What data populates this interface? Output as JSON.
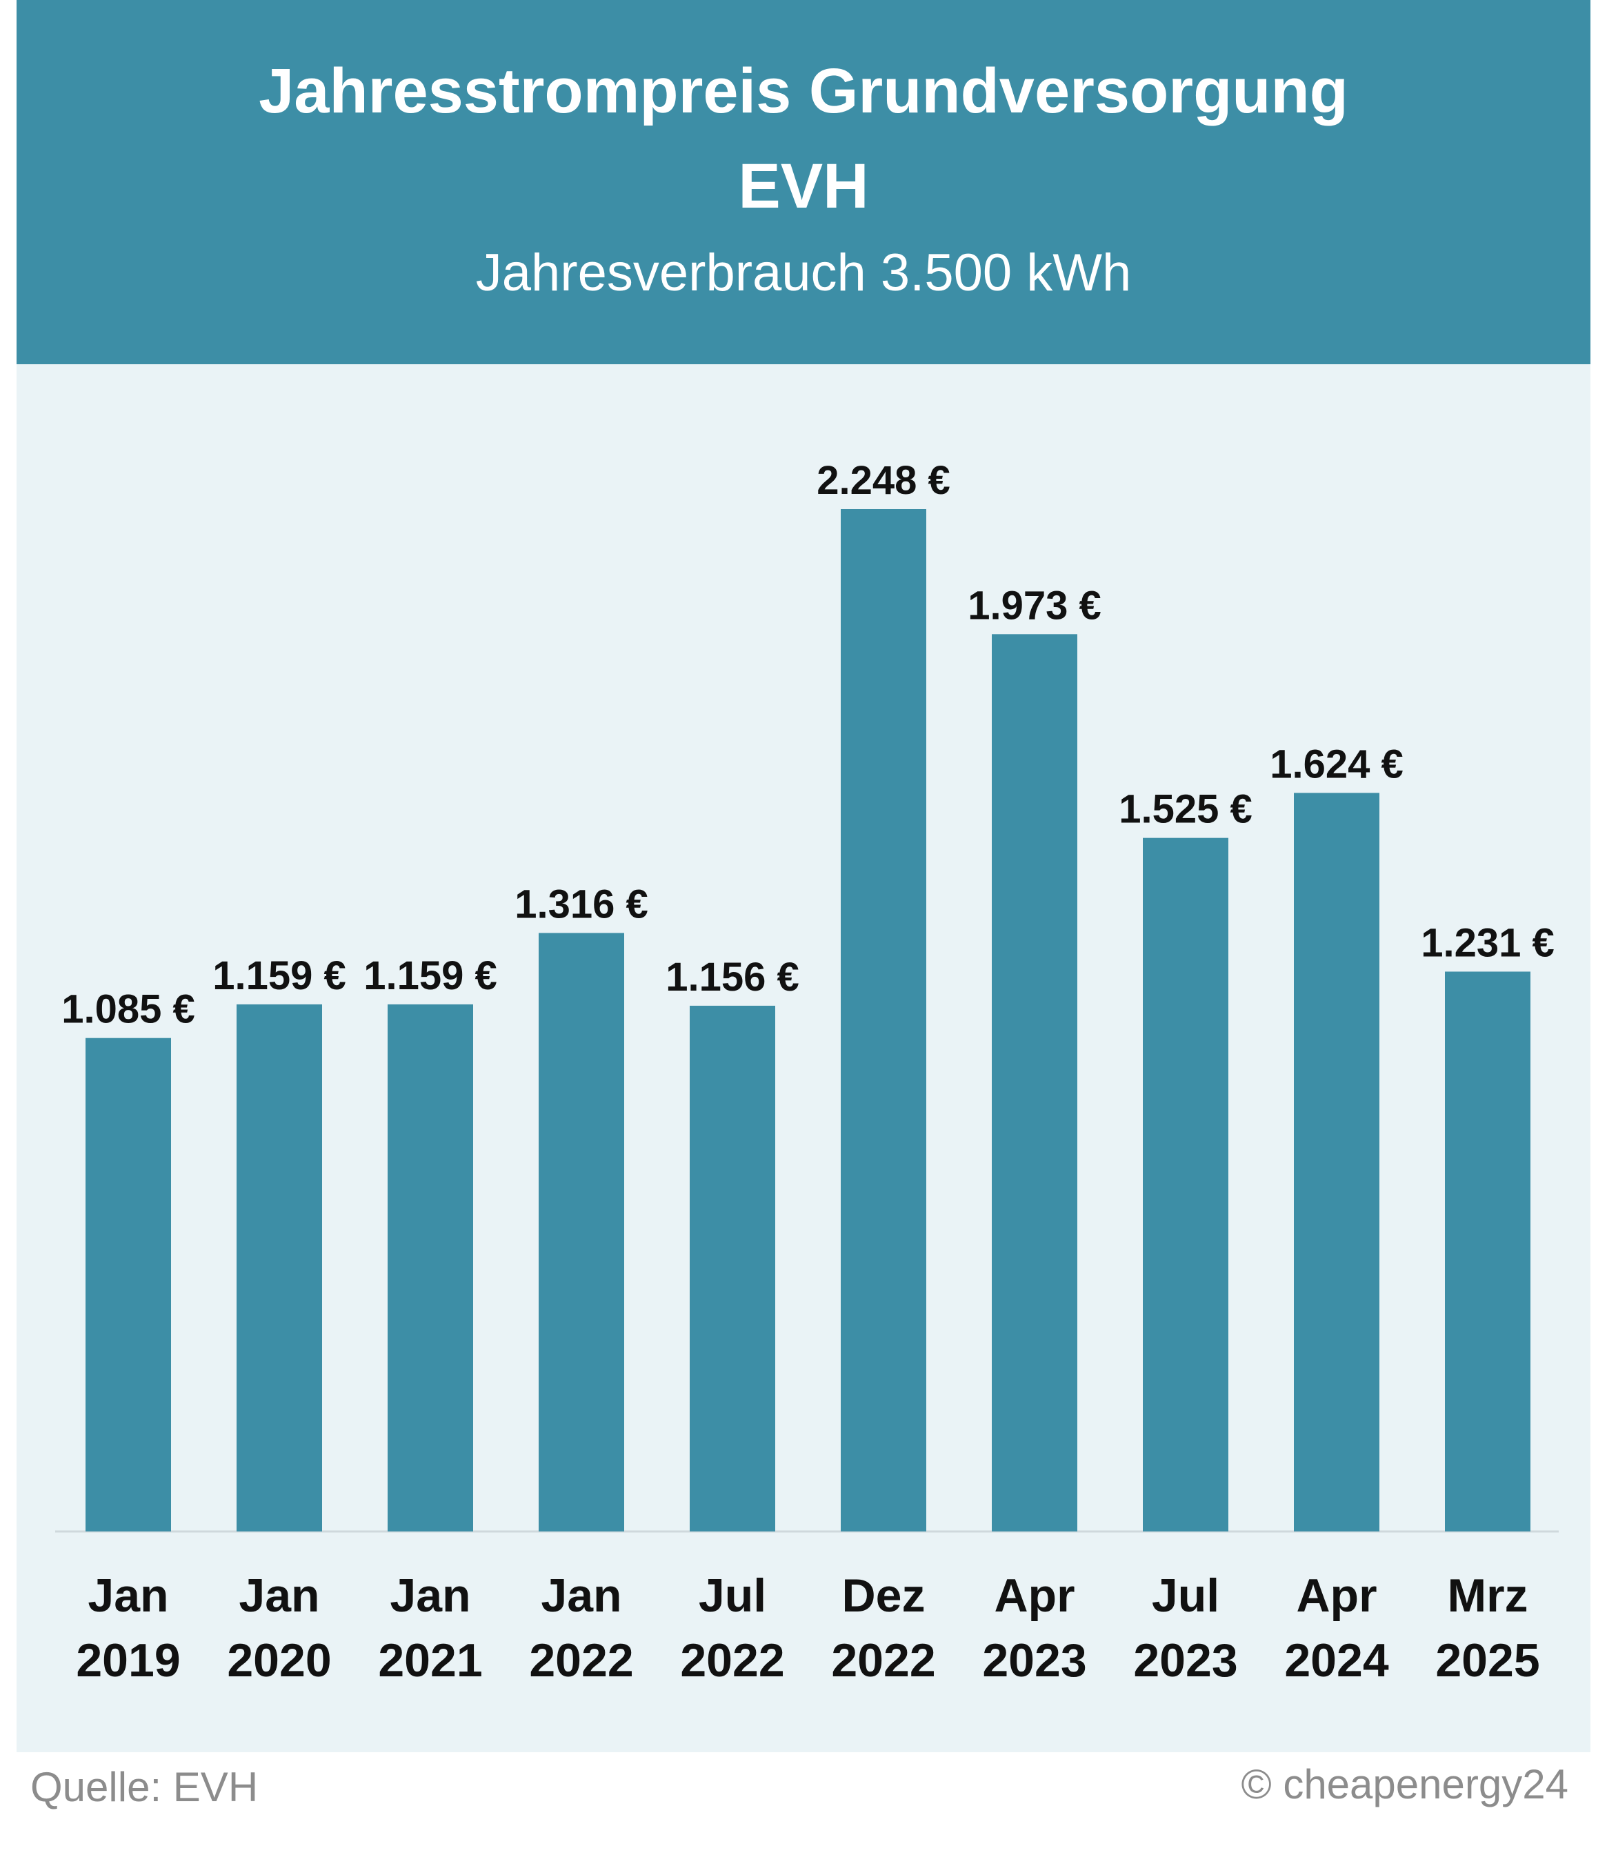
{
  "header": {
    "title_line1": "Jahresstrompreis Grundversorgung",
    "title_line2": "EVH",
    "subtitle": "Jahresverbrauch 3.500 kWh"
  },
  "footer": {
    "source": "Quelle: EVH",
    "copyright": "© cheapenergy24"
  },
  "colors": {
    "header_bg": "#3d8ea6",
    "bar": "#3d8ea6",
    "plot_bg": "#eaf3f6"
  },
  "chart_data": {
    "type": "bar",
    "categories": [
      [
        "Jan",
        "2019"
      ],
      [
        "Jan",
        "2020"
      ],
      [
        "Jan",
        "2021"
      ],
      [
        "Jan",
        "2022"
      ],
      [
        "Jul",
        "2022"
      ],
      [
        "Dez",
        "2022"
      ],
      [
        "Apr",
        "2023"
      ],
      [
        "Jul",
        "2023"
      ],
      [
        "Apr",
        "2024"
      ],
      [
        "Mrz",
        "2025"
      ]
    ],
    "values": [
      1085,
      1159,
      1159,
      1316,
      1156,
      2248,
      1973,
      1525,
      1624,
      1231
    ],
    "value_labels": [
      "1.085 €",
      "1.159 €",
      "1.159 €",
      "1.316 €",
      "1.156 €",
      "2.248 €",
      "1.973 €",
      "1.525 €",
      "1.624 €",
      "1.231 €"
    ],
    "title": "Jahresstrompreis Grundversorgung EVH",
    "subtitle": "Jahresverbrauch 3.500 kWh",
    "ylim": [
      0,
      2248
    ],
    "grid": false,
    "legend": "none"
  }
}
